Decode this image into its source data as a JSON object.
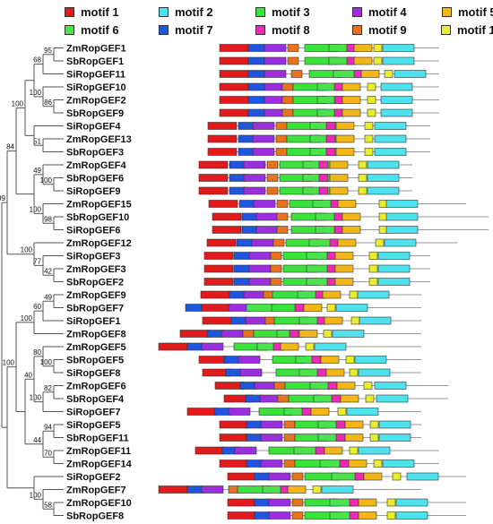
{
  "legend": [
    {
      "label": "motif 1",
      "color": "#e31a1c"
    },
    {
      "label": "motif 2",
      "color": "#4de2ee"
    },
    {
      "label": "motif 3",
      "color": "#39e33a"
    },
    {
      "label": "motif 4",
      "color": "#9b2fe0"
    },
    {
      "label": "motif 5",
      "color": "#f2b619"
    },
    {
      "label": "motif 6",
      "color": "#49e34c"
    },
    {
      "label": "motif 7",
      "color": "#1f55e0"
    },
    {
      "label": "motif 8",
      "color": "#ec2ab3"
    },
    {
      "label": "motif 9",
      "color": "#e8731e"
    },
    {
      "label": "motif 10",
      "color": "#e8ee2c"
    }
  ],
  "genes": [
    "ZmRopGEF1",
    "SbRopGEF1",
    "SiRopGEF11",
    "SiRopGEF10",
    "ZmRopGEF2",
    "SbRopGEF9",
    "SiRopGEF4",
    "ZmRopGEF13",
    "SbRopGEF3",
    "ZmRopGEF4",
    "SbRopGEF6",
    "SiRopGEF9",
    "ZmRopGEF15",
    "SbRopGEF10",
    "SiRopGEF6",
    "ZmRopGEF12",
    "SiRopGEF3",
    "ZmRopGEF3",
    "SbRopGEF2",
    "ZmRopGEF9",
    "SbRopGEF7",
    "SiRopGEF1",
    "ZmRopGEF8",
    "ZmRopGEF5",
    "SbRopGEF5",
    "SiRopGEF8",
    "ZmRopGEF6",
    "SbRopGEF4",
    "SiRopGEF7",
    "SiRopGEF5",
    "SbRopGEF11",
    "ZmRopGEF11",
    "ZmRopGEF14",
    "SiRopGEF2",
    "ZmRopGEF7",
    "ZmRopGEF10",
    "SbRopGEF8"
  ],
  "bootstrap": [
    "95",
    "100",
    "68",
    "100",
    "86",
    "100",
    "51",
    "84",
    "49",
    "100",
    "100",
    "98",
    "100",
    "99",
    "100",
    "42",
    "77",
    "49",
    "60",
    "100",
    "80",
    "100",
    "40",
    "82",
    "100",
    "94",
    "44",
    "70",
    "100",
    "58"
  ]
}
